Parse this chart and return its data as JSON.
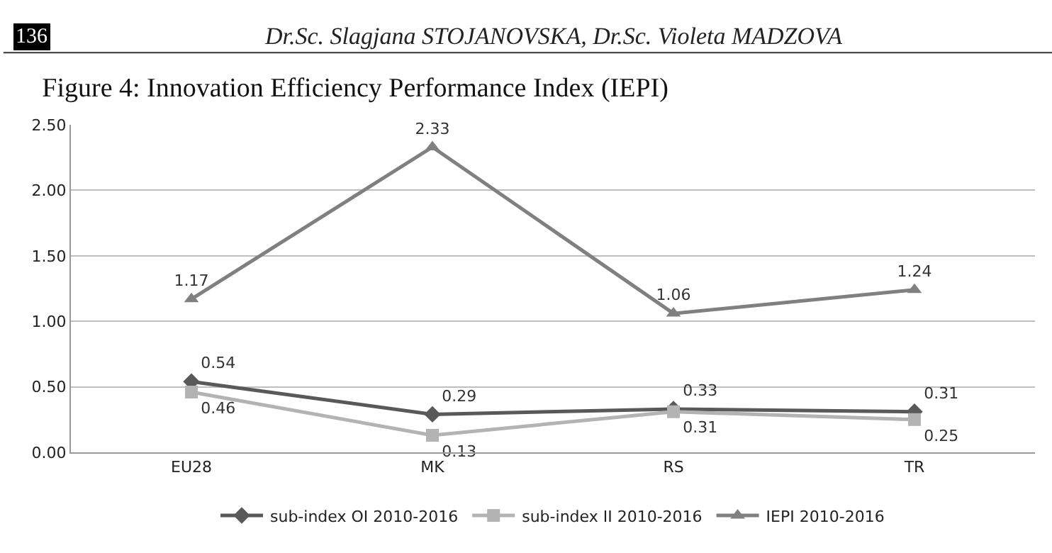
{
  "chart_data": {
    "type": "line",
    "title": "Figure 4: Innovation Efficiency Performance Index (IEPI)",
    "annotations": [
      "136",
      "Dr.Sc. Slagjana STOJANOVSKA, Dr.Sc. Violeta MADZOVA"
    ],
    "categories": [
      "EU28",
      "MK",
      "RS",
      "TR"
    ],
    "series": [
      {
        "name": "sub-index OI 2010-2016",
        "color": "#595959",
        "marker": "diamond",
        "values": [
          0.54,
          0.29,
          0.33,
          0.31
        ]
      },
      {
        "name": "sub-index II 2010-2016",
        "color": "#b3b3b3",
        "marker": "square",
        "values": [
          0.46,
          0.13,
          0.31,
          0.25
        ]
      },
      {
        "name": "IEPI 2010-2016",
        "color": "#808080",
        "marker": "triangle",
        "values": [
          1.17,
          2.33,
          1.06,
          1.24
        ]
      }
    ],
    "ylim": [
      0,
      2.5
    ],
    "yticks": [
      {
        "value": 0,
        "label": "0.00"
      },
      {
        "value": 0.5,
        "label": "0.50"
      },
      {
        "value": 1,
        "label": "1.00"
      },
      {
        "value": 1.5,
        "label": "1.50"
      },
      {
        "value": 2,
        "label": "2.00"
      },
      {
        "value": 2.5,
        "label": "2.50"
      }
    ],
    "grid": "y",
    "legend": "bottom",
    "data_labels": true
  }
}
